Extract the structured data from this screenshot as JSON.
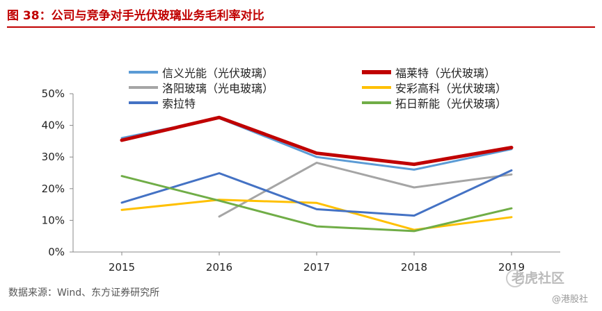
{
  "title": "图 38：公司与竞争对手光伏玻璃业务毛利率对比",
  "source": "数据来源：Wind、东方证券研究所",
  "watermark": {
    "main": "老虎社区",
    "sub": "@港股社"
  },
  "chart_data": {
    "type": "line",
    "title": "",
    "xlabel": "",
    "ylabel": "",
    "categories": [
      "2015",
      "2016",
      "2017",
      "2018",
      "2019"
    ],
    "ylim": [
      0,
      50
    ],
    "yticks": [
      "0%",
      "10%",
      "20%",
      "30%",
      "40%",
      "50%"
    ],
    "grid": false,
    "legend_position": "top",
    "series": [
      {
        "name": "信义光能（光伏玻璃）",
        "color": "#5b9bd5",
        "width": 3,
        "values": [
          36,
          42.3,
          30,
          26,
          32.5
        ]
      },
      {
        "name": "福莱特（光伏玻璃）",
        "color": "#c00000",
        "width": 5,
        "values": [
          35.3,
          42.5,
          31.2,
          27.7,
          33
        ]
      },
      {
        "name": "洛阳玻璃（光电玻璃）",
        "color": "#a5a5a5",
        "width": 3,
        "values": [
          null,
          11.2,
          28.2,
          20.4,
          24.5
        ]
      },
      {
        "name": "安彩高科（光伏玻璃）",
        "color": "#ffc000",
        "width": 3,
        "values": [
          13.3,
          16.5,
          15.5,
          7,
          11
        ]
      },
      {
        "name": "索拉特",
        "color": "#4472c4",
        "width": 3,
        "values": [
          15.6,
          24.9,
          13.5,
          11.5,
          25.8
        ]
      },
      {
        "name": "拓日新能（光伏玻璃）",
        "color": "#70ad47",
        "width": 3,
        "values": [
          24,
          16.2,
          8.1,
          6.6,
          13.8
        ]
      }
    ]
  }
}
